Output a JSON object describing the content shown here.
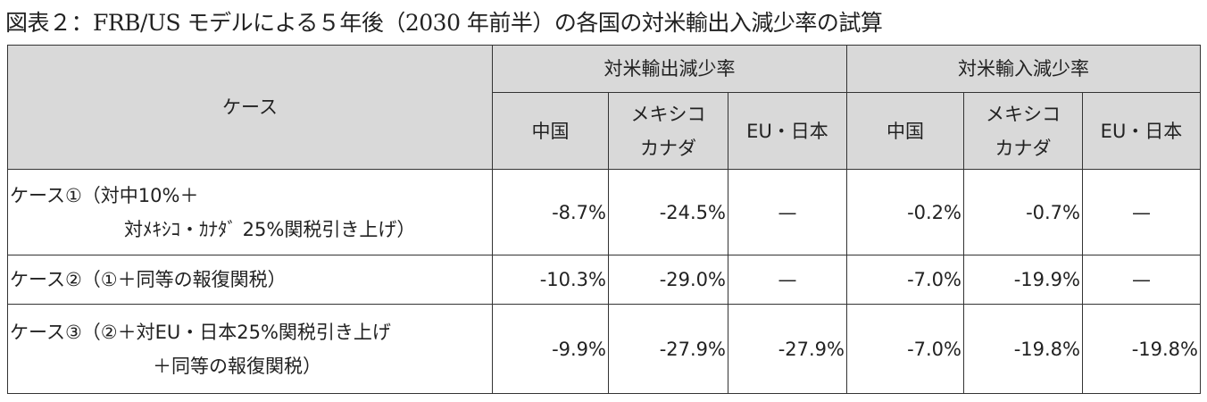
{
  "header": {
    "title": "図表２：FRB/US モデルによる５年後（2030 年前半）の各国の対米輸出入減少率の試算"
  },
  "table": {
    "case_header": "ケース",
    "group_headers": [
      "対米輸出減少率",
      "対米輸入減少率"
    ],
    "sub_headers": [
      "中国",
      [
        "メキシコ",
        "カナダ"
      ],
      "EU・日本",
      "中国",
      [
        "メキシコ",
        "カナダ"
      ],
      "EU・日本"
    ],
    "rows": [
      {
        "case": [
          "ケース①（対中10%＋",
          "対ﾒｷｼｺ・ｶﾅﾀﾞ 25%関税引き上げ）"
        ],
        "cells": [
          "-8.7%",
          "-24.5%",
          "—",
          "-0.2%",
          "-0.7%",
          "—"
        ]
      },
      {
        "case": [
          "ケース②（①＋同等の報復関税）"
        ],
        "cells": [
          "-10.3%",
          "-29.0%",
          "—",
          "-7.0%",
          "-19.9%",
          "—"
        ]
      },
      {
        "case": [
          "ケース③（②＋対EU・日本25%関税引き上げ",
          "＋同等の報復関税）"
        ],
        "cells": [
          "-9.9%",
          "-27.9%",
          "-27.9%",
          "-7.0%",
          "-19.8%",
          "-19.8%"
        ]
      }
    ]
  }
}
